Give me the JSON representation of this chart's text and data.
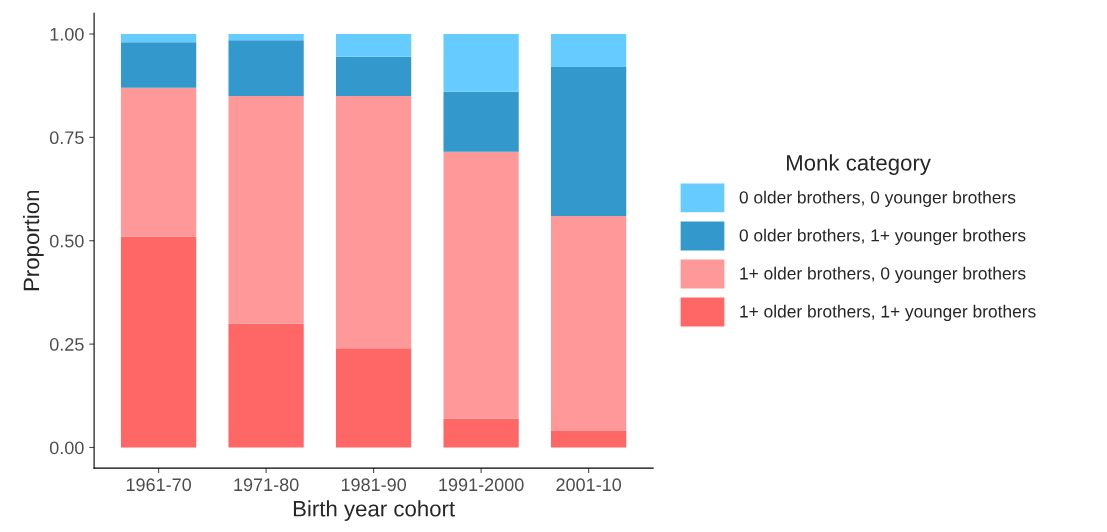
{
  "chart_data": {
    "type": "bar",
    "stacked": true,
    "xlabel": "Birth year cohort",
    "ylabel": "Proportion",
    "legend_title": "Monk category",
    "legend": "right",
    "grid": false,
    "categories": [
      "1961-70",
      "1971-80",
      "1981-90",
      "1991-2000",
      "2001-10"
    ],
    "ylim": [
      -0.05,
      1.05
    ],
    "yticks": [
      {
        "value": 0,
        "label": "0.00"
      },
      {
        "value": 0.25,
        "label": "0.25"
      },
      {
        "value": 0.5,
        "label": "0.50"
      },
      {
        "value": 0.75,
        "label": "0.75"
      },
      {
        "value": 1,
        "label": "1.00"
      }
    ],
    "series": [
      {
        "name": "1+ older brothers, 1+ younger brothers",
        "color": "#ff6666",
        "values": [
          0.51,
          0.3,
          0.24,
          0.07,
          0.04
        ]
      },
      {
        "name": "1+ older brothers, 0 younger brothers",
        "color": "#ff9999",
        "values": [
          0.36,
          0.55,
          0.61,
          0.645,
          0.52
        ]
      },
      {
        "name": "0 older brothers, 1+ younger brothers",
        "color": "#3399cc",
        "values": [
          0.11,
          0.135,
          0.095,
          0.145,
          0.36
        ]
      },
      {
        "name": "0 older brothers, 0 younger brothers",
        "color": "#66ccff",
        "values": [
          0.02,
          0.015,
          0.055,
          0.14,
          0.08
        ]
      }
    ]
  }
}
